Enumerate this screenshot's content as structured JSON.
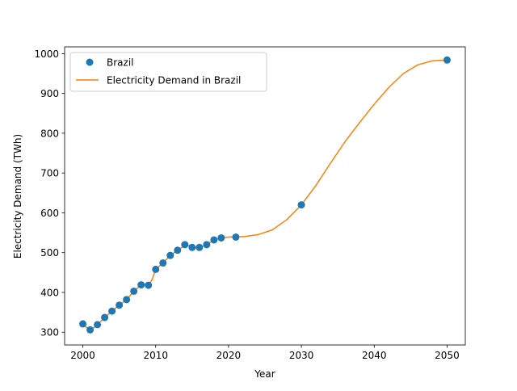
{
  "chart_data": {
    "type": "scatter",
    "title": "",
    "xlabel": "Year",
    "ylabel": "Electricity Demand (TWh)",
    "xlim": [
      1997.5,
      2052.5
    ],
    "ylim": [
      268,
      1017
    ],
    "xticks": [
      2000,
      2010,
      2020,
      2030,
      2040,
      2050
    ],
    "yticks": [
      300,
      400,
      500,
      600,
      700,
      800,
      900,
      1000
    ],
    "grid": false,
    "legend_position": "upper-left",
    "series": [
      {
        "name": "Brazil",
        "kind": "scatter",
        "color": "#1f77b4",
        "x": [
          2000,
          2001,
          2002,
          2003,
          2004,
          2005,
          2006,
          2007,
          2008,
          2009,
          2010,
          2011,
          2012,
          2013,
          2014,
          2015,
          2016,
          2017,
          2018,
          2019,
          2021,
          2030,
          2050
        ],
        "y": [
          321,
          306,
          319,
          337,
          353,
          368,
          382,
          403,
          419,
          418,
          458,
          474,
          493,
          506,
          520,
          513,
          513,
          520,
          532,
          537,
          539,
          620,
          984
        ]
      },
      {
        "name": "Electricity Demand in Brazil",
        "kind": "line",
        "color": "#ff7f0e",
        "x": [
          2000,
          2000.5,
          2001,
          2001.5,
          2002,
          2003,
          2004,
          2005,
          2006,
          2007,
          2008,
          2008.5,
          2009,
          2009.5,
          2010,
          2011,
          2012,
          2013,
          2014,
          2014.5,
          2015,
          2016,
          2017,
          2018,
          2019,
          2020,
          2021,
          2022,
          2024,
          2026,
          2028,
          2030,
          2032,
          2034,
          2036,
          2038,
          2040,
          2042,
          2044,
          2046,
          2048,
          2050
        ],
        "y": [
          321,
          312,
          308,
          311,
          319,
          337,
          353,
          368,
          382,
          403,
          419,
          420,
          418,
          432,
          458,
          474,
          493,
          506,
          518,
          518,
          513,
          513,
          520,
          532,
          537,
          539,
          540,
          540,
          545,
          557,
          583,
          620,
          669,
          725,
          779,
          827,
          873,
          915,
          950,
          972,
          982,
          984
        ]
      }
    ]
  }
}
